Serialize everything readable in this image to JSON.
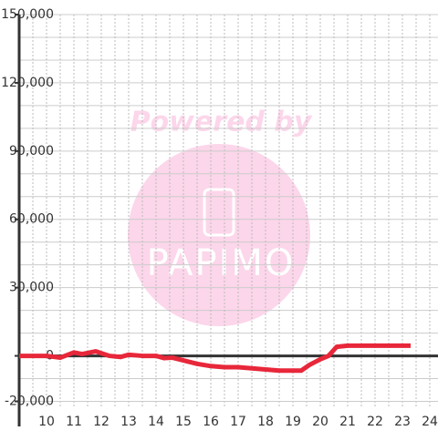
{
  "chart_data": {
    "type": "line",
    "x": [
      9,
      10,
      10.5,
      11,
      11.3,
      11.8,
      12.3,
      12.7,
      13,
      13.5,
      14,
      14.3,
      14.6,
      15,
      15.5,
      16,
      16.5,
      17,
      17.5,
      18,
      18.5,
      19,
      19.3,
      19.6,
      20,
      20.3,
      20.6,
      21,
      22,
      23,
      23.3
    ],
    "series": [
      {
        "color": "#e8273a",
        "values": [
          0,
          0,
          -800,
          1500,
          800,
          2000,
          0,
          -500,
          500,
          0,
          0,
          -1000,
          -800,
          -2000,
          -3500,
          -4500,
          -5000,
          -5000,
          -5500,
          -6000,
          -6500,
          -6500,
          -6500,
          -4000,
          -1500,
          0,
          4000,
          4500,
          4500,
          4500,
          4500
        ]
      }
    ],
    "xlim": [
      9,
      24.3
    ],
    "xticks": [
      10,
      11,
      12,
      13,
      14,
      15,
      16,
      17,
      18,
      19,
      20,
      21,
      22,
      23,
      24
    ],
    "xminor_ticks": [
      9.5,
      10.5,
      11.5,
      12.5,
      13.5,
      14.5,
      15.5,
      16.5,
      17.5,
      18.5,
      19.5,
      20.5,
      21.5,
      22.5,
      23.5
    ],
    "ylim": [
      -23000,
      150000
    ],
    "yticks": [
      {
        "value": 150000,
        "label": "150,000"
      },
      {
        "value": 120000,
        "label": "120,000"
      },
      {
        "value": 90000,
        "label": "90,000"
      },
      {
        "value": 60000,
        "label": "60,000"
      },
      {
        "value": 30000,
        "label": "30,000"
      },
      0,
      {
        "value": -20000,
        "label": "-20,000"
      }
    ],
    "yminor_ticks": [
      140000,
      130000,
      110000,
      100000,
      80000,
      70000,
      50000,
      40000,
      20000,
      10000,
      -10000
    ],
    "grid": true,
    "watermark": {
      "line1": "Powered by",
      "line2": "PAPIMO"
    }
  }
}
